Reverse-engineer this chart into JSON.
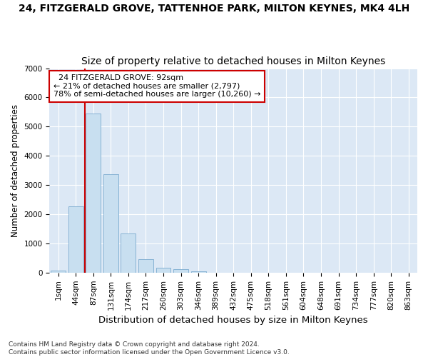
{
  "title_line1": "24, FITZGERALD GROVE, TATTENHOE PARK, MILTON KEYNES, MK4 4LH",
  "title_line2": "Size of property relative to detached houses in Milton Keynes",
  "xlabel": "Distribution of detached houses by size in Milton Keynes",
  "ylabel": "Number of detached properties",
  "footnote": "Contains HM Land Registry data © Crown copyright and database right 2024.\nContains public sector information licensed under the Open Government Licence v3.0.",
  "bar_color": "#c8dff0",
  "bar_edge_color": "#7aaacf",
  "annotation_box_text": "  24 FITZGERALD GROVE: 92sqm\n← 21% of detached houses are smaller (2,797)\n78% of semi-detached houses are larger (10,260) →",
  "annotation_box_color": "#ffffff",
  "annotation_box_edge_color": "#cc0000",
  "vline_color": "#cc0000",
  "vline_x": 2.0,
  "categories": [
    "1sqm",
    "44sqm",
    "87sqm",
    "131sqm",
    "174sqm",
    "217sqm",
    "260sqm",
    "303sqm",
    "346sqm",
    "389sqm",
    "432sqm",
    "475sqm",
    "518sqm",
    "561sqm",
    "604sqm",
    "648sqm",
    "691sqm",
    "734sqm",
    "777sqm",
    "820sqm",
    "863sqm"
  ],
  "bar_values": [
    70,
    2270,
    5450,
    3380,
    1330,
    450,
    175,
    130,
    50,
    5,
    3,
    2,
    1,
    0,
    0,
    0,
    0,
    0,
    0,
    0,
    0
  ],
  "ylim": [
    0,
    7000
  ],
  "yticks": [
    0,
    1000,
    2000,
    3000,
    4000,
    5000,
    6000,
    7000
  ],
  "fig_bg_color": "#ffffff",
  "plot_bg_color": "#dce8f5",
  "grid_color": "#ffffff",
  "title1_fontsize": 10,
  "title2_fontsize": 10,
  "xlabel_fontsize": 9.5,
  "ylabel_fontsize": 8.5,
  "tick_fontsize": 7.5,
  "footnote_fontsize": 6.5
}
